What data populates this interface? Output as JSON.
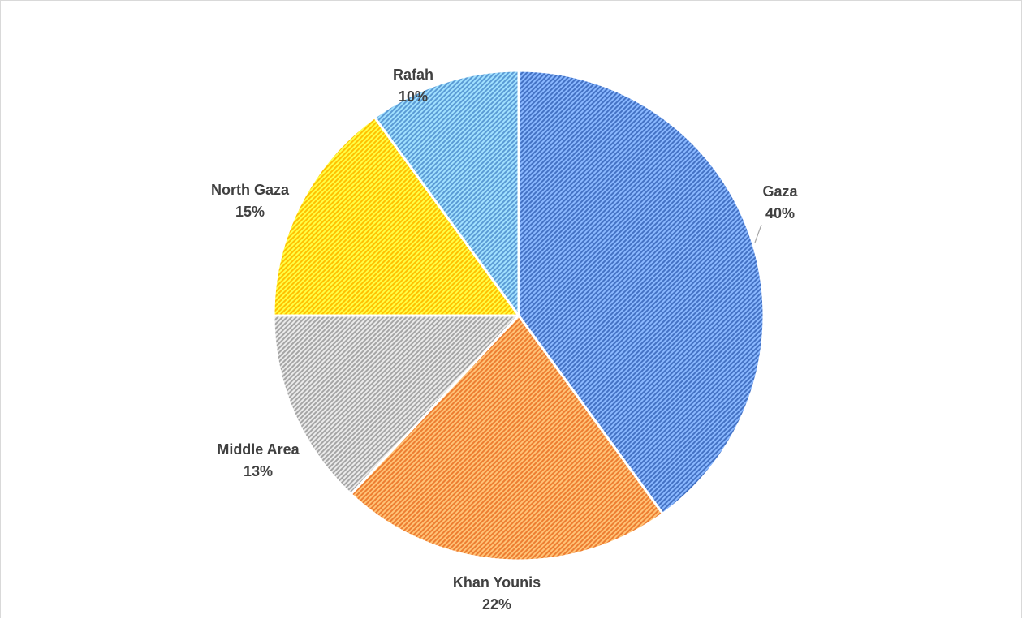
{
  "chart_data": {
    "type": "pie",
    "title": "",
    "legend": "none",
    "data_labels": "category name and percentage",
    "slices": [
      {
        "name": "Gaza",
        "value": 40,
        "label": "40%",
        "color": "#4472c4"
      },
      {
        "name": "Khan Younis",
        "value": 22,
        "label": "22%",
        "color": "#ed7d31"
      },
      {
        "name": "Middle Area",
        "value": 13,
        "label": "13%",
        "color": "#a5a5a5"
      },
      {
        "name": "North Gaza",
        "value": 15,
        "label": "15%",
        "color": "#ffc000"
      },
      {
        "name": "Rafah",
        "value": 10,
        "label": "10%",
        "color": "#5b9bd5"
      }
    ]
  }
}
